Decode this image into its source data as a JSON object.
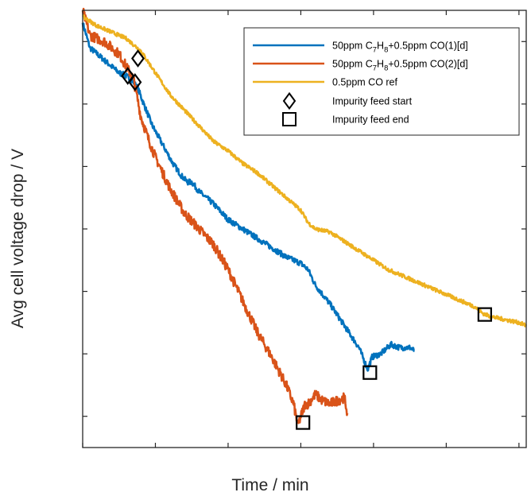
{
  "chart_data": {
    "type": "line",
    "title": "",
    "xlabel": "Time / min",
    "ylabel": "Avg cell voltage drop / V",
    "xlim": [
      0,
      305
    ],
    "ylim": [
      -0.065,
      0.005
    ],
    "x_ticks": [
      "0",
      "50",
      "100",
      "150",
      "200",
      "250",
      "300"
    ],
    "y_ticks": [
      "0",
      "-0.01",
      "-0.02",
      "-0.03",
      "-0.04",
      "-0.05",
      "-0.06"
    ],
    "grid": false,
    "legend_position": "top-right",
    "series": [
      {
        "name": "50ppm C7H8+0.5ppm CO(1)[d]",
        "color": "#0072BD",
        "x": [
          0,
          5,
          10,
          15,
          20,
          25,
          30,
          35,
          38,
          42,
          48,
          55,
          62,
          68,
          72,
          75,
          80,
          90,
          100,
          110,
          120,
          130,
          140,
          150,
          155,
          160,
          170,
          180,
          190,
          196,
          199,
          205,
          212,
          218,
          225,
          228
        ],
        "y": [
          0.003,
          -0.001,
          -0.002,
          -0.003,
          -0.004,
          -0.005,
          -0.0055,
          -0.0065,
          -0.0075,
          -0.01,
          -0.0135,
          -0.0165,
          -0.0195,
          -0.0215,
          -0.0225,
          -0.0225,
          -0.024,
          -0.026,
          -0.0285,
          -0.03,
          -0.0315,
          -0.033,
          -0.0345,
          -0.0355,
          -0.0365,
          -0.039,
          -0.042,
          -0.0455,
          -0.049,
          -0.0525,
          -0.0505,
          -0.05,
          -0.0485,
          -0.049,
          -0.049,
          -0.0495
        ]
      },
      {
        "name": "50ppm C7H8+0.5ppm CO(2)[d]",
        "color": "#D95319",
        "x": [
          0,
          5,
          10,
          15,
          20,
          25,
          30,
          35,
          40,
          45,
          50,
          60,
          70,
          80,
          90,
          100,
          110,
          120,
          130,
          140,
          145,
          148,
          150,
          153,
          155,
          160,
          165,
          170,
          175,
          180,
          182
        ],
        "y": [
          0.005,
          0.001,
          0.0005,
          0.0,
          -0.001,
          -0.002,
          -0.004,
          -0.006,
          -0.012,
          -0.0155,
          -0.0185,
          -0.0235,
          -0.0275,
          -0.03,
          -0.0325,
          -0.0365,
          -0.0415,
          -0.0465,
          -0.0505,
          -0.055,
          -0.058,
          -0.0615,
          -0.06,
          -0.058,
          -0.058,
          -0.0565,
          -0.0575,
          -0.058,
          -0.0575,
          -0.057,
          -0.0595
        ]
      },
      {
        "name": "0.5ppm CO ref",
        "color": "#EDB120",
        "x": [
          0,
          10,
          20,
          30,
          40,
          50,
          60,
          70,
          80,
          90,
          100,
          110,
          120,
          130,
          140,
          150,
          155,
          160,
          170,
          180,
          190,
          200,
          210,
          220,
          230,
          240,
          250,
          260,
          270,
          275,
          280,
          290,
          300,
          305
        ],
        "y": [
          0.004,
          0.0025,
          0.0015,
          0.0005,
          -0.0015,
          -0.005,
          -0.0085,
          -0.011,
          -0.0135,
          -0.016,
          -0.0175,
          -0.0195,
          -0.021,
          -0.023,
          -0.025,
          -0.027,
          -0.029,
          -0.03,
          -0.0305,
          -0.032,
          -0.0335,
          -0.035,
          -0.0365,
          -0.0375,
          -0.0385,
          -0.0395,
          -0.0405,
          -0.0415,
          -0.0425,
          -0.0435,
          -0.044,
          -0.0445,
          -0.045,
          -0.0455
        ]
      }
    ],
    "markers": [
      {
        "name": "Impurity feed start",
        "shape": "diamond",
        "points": [
          {
            "x": 31,
            "y": -0.0055
          },
          {
            "x": 36,
            "y": -0.0065
          },
          {
            "x": 38,
            "y": -0.0027
          }
        ]
      },
      {
        "name": "Impurity feed end",
        "shape": "square",
        "points": [
          {
            "x": 151.5,
            "y": -0.061
          },
          {
            "x": 197.5,
            "y": -0.053
          },
          {
            "x": 276.5,
            "y": -0.0437
          }
        ]
      }
    ]
  },
  "legend": {
    "entries": [
      {
        "type": "line",
        "color": "#0072BD",
        "parts": [
          {
            "t": "50ppm C"
          },
          {
            "t": "7",
            "sub": true
          },
          {
            "t": "H"
          },
          {
            "t": "8",
            "sub": true
          },
          {
            "t": "+0.5ppm CO(1)[d]"
          }
        ]
      },
      {
        "type": "line",
        "color": "#D95319",
        "parts": [
          {
            "t": "50ppm C"
          },
          {
            "t": "7",
            "sub": true
          },
          {
            "t": "H"
          },
          {
            "t": "8",
            "sub": true
          },
          {
            "t": "+0.5ppm CO(2)[d]"
          }
        ]
      },
      {
        "type": "line",
        "color": "#EDB120",
        "parts": [
          {
            "t": "0.5ppm CO ref"
          }
        ]
      },
      {
        "type": "diamond",
        "color": "#000000",
        "parts": [
          {
            "t": "Impurity feed start"
          }
        ]
      },
      {
        "type": "square",
        "color": "#000000",
        "parts": [
          {
            "t": "Impurity feed end"
          }
        ]
      }
    ]
  }
}
